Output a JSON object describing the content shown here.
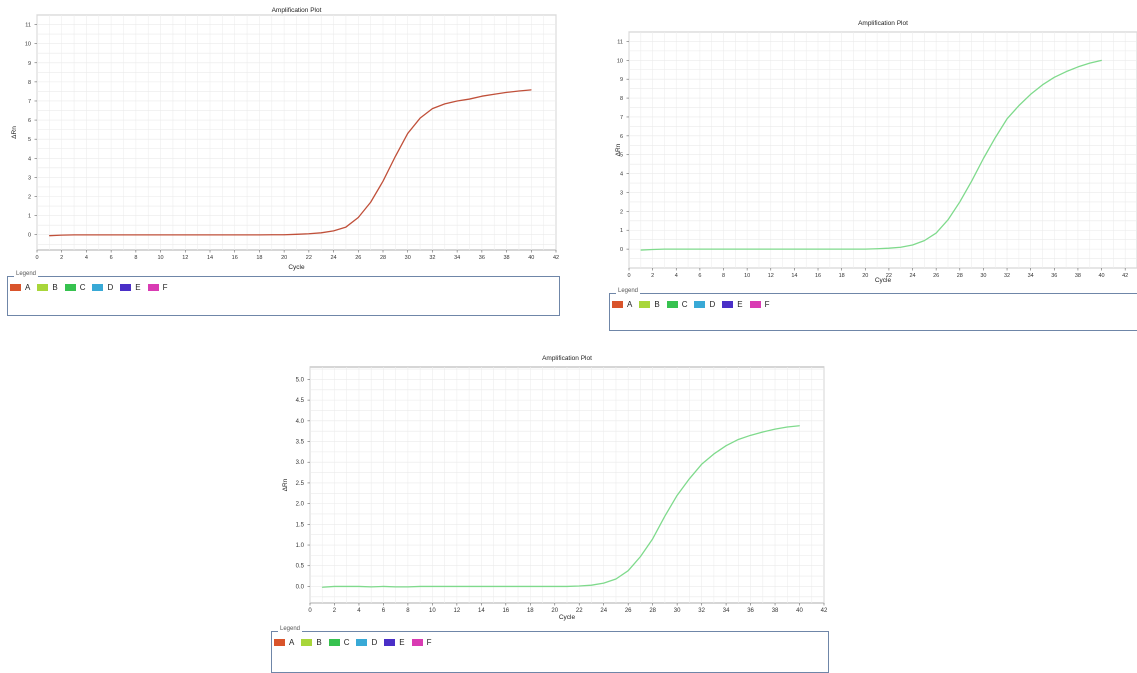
{
  "panels": [
    {
      "title": "Amplification Plot",
      "xlabel": "Cycle",
      "ylabel": "ΔRn",
      "legend_title": "Legend"
    },
    {
      "title": "Amplification Plot",
      "xlabel": "Cycle",
      "ylabel": "ΔRn",
      "legend_title": "Legend"
    },
    {
      "title": "Amplification Plot",
      "xlabel": "Cycle",
      "ylabel": "ΔRn",
      "legend_title": "Legend"
    }
  ],
  "legend": [
    {
      "label": "A",
      "color": "#d9542b"
    },
    {
      "label": "B",
      "color": "#a8d63a"
    },
    {
      "label": "C",
      "color": "#36c24f"
    },
    {
      "label": "D",
      "color": "#38a9d6"
    },
    {
      "label": "E",
      "color": "#4a2fc7"
    },
    {
      "label": "F",
      "color": "#d93bb3"
    }
  ],
  "chart_data": [
    {
      "type": "line",
      "title": "Amplification Plot",
      "xlabel": "Cycle",
      "ylabel": "ΔRn",
      "xlim": [
        0,
        42
      ],
      "ylim": [
        -0.8,
        11.5
      ],
      "xticks": [
        0,
        2,
        4,
        6,
        8,
        10,
        12,
        14,
        16,
        18,
        20,
        22,
        24,
        26,
        28,
        30,
        32,
        34,
        36,
        38,
        40,
        42
      ],
      "yticks": [
        0,
        1,
        2,
        3,
        4,
        5,
        6,
        7,
        8,
        9,
        10,
        11
      ],
      "ytick_labels": [
        "0",
        "1",
        "2",
        "3",
        "4",
        "5",
        "6",
        "7",
        "8",
        "9",
        "10",
        "11"
      ],
      "grid": true,
      "legend_position": "bottom",
      "series": [
        {
          "name": "A",
          "color": "#c0503a",
          "x": [
            1,
            2,
            3,
            4,
            5,
            6,
            7,
            8,
            9,
            10,
            11,
            12,
            13,
            14,
            15,
            16,
            17,
            18,
            19,
            20,
            21,
            22,
            23,
            24,
            25,
            26,
            27,
            28,
            29,
            30,
            31,
            32,
            33,
            34,
            35,
            36,
            37,
            38,
            39,
            40
          ],
          "y": [
            -0.05,
            -0.02,
            -0.01,
            -0.01,
            -0.01,
            -0.01,
            -0.01,
            -0.01,
            -0.01,
            -0.01,
            -0.01,
            -0.01,
            -0.01,
            -0.01,
            -0.01,
            -0.01,
            -0.01,
            -0.01,
            0.0,
            0.0,
            0.02,
            0.05,
            0.1,
            0.2,
            0.4,
            0.9,
            1.7,
            2.8,
            4.1,
            5.3,
            6.1,
            6.6,
            6.85,
            7.0,
            7.1,
            7.25,
            7.35,
            7.45,
            7.52,
            7.58
          ]
        }
      ]
    },
    {
      "type": "line",
      "title": "Amplification Plot",
      "xlabel": "Cycle",
      "ylabel": "ΔRn",
      "xlim": [
        0,
        43
      ],
      "ylim": [
        -1,
        11.5
      ],
      "xticks": [
        0,
        2,
        4,
        6,
        8,
        10,
        12,
        14,
        16,
        18,
        20,
        22,
        24,
        26,
        28,
        30,
        32,
        34,
        36,
        38,
        40,
        42
      ],
      "yticks": [
        0,
        1,
        2,
        3,
        4,
        5,
        6,
        7,
        8,
        9,
        10,
        11
      ],
      "ytick_labels": [
        "0",
        "1",
        "2",
        "3",
        "4",
        "5",
        "6",
        "7",
        "8",
        "9",
        "10",
        "11"
      ],
      "grid": true,
      "legend_position": "bottom",
      "series": [
        {
          "name": "C",
          "color": "#7fda8c",
          "x": [
            1,
            2,
            3,
            4,
            5,
            6,
            7,
            8,
            9,
            10,
            11,
            12,
            13,
            14,
            15,
            16,
            17,
            18,
            19,
            20,
            21,
            22,
            23,
            24,
            25,
            26,
            27,
            28,
            29,
            30,
            31,
            32,
            33,
            34,
            35,
            36,
            37,
            38,
            39,
            40
          ],
          "y": [
            -0.05,
            -0.02,
            0.0,
            0.0,
            0.0,
            0.0,
            0.0,
            0.0,
            0.0,
            0.0,
            0.0,
            0.0,
            0.0,
            0.0,
            0.0,
            0.0,
            0.0,
            0.0,
            0.0,
            0.0,
            0.02,
            0.05,
            0.1,
            0.22,
            0.45,
            0.85,
            1.55,
            2.5,
            3.6,
            4.8,
            5.9,
            6.9,
            7.6,
            8.2,
            8.7,
            9.1,
            9.4,
            9.65,
            9.85,
            10.0
          ]
        }
      ]
    },
    {
      "type": "line",
      "title": "Amplification Plot",
      "xlabel": "Cycle",
      "ylabel": "ΔRn",
      "xlim": [
        0,
        42
      ],
      "ylim": [
        -0.4,
        5.3
      ],
      "xticks": [
        0,
        2,
        4,
        6,
        8,
        10,
        12,
        14,
        16,
        18,
        20,
        22,
        24,
        26,
        28,
        30,
        32,
        34,
        36,
        38,
        40,
        42
      ],
      "yticks": [
        0,
        0.5,
        1,
        1.5,
        2,
        2.5,
        3,
        3.5,
        4,
        4.5,
        5
      ],
      "ytick_labels": [
        "0.0",
        "0.5",
        "1.0",
        "1.5",
        "2.0",
        "2.5",
        "3.0",
        "3.5",
        "4.0",
        "4.5",
        "5.0"
      ],
      "grid": true,
      "legend_position": "bottom",
      "series": [
        {
          "name": "C",
          "color": "#7fda8c",
          "x": [
            1,
            2,
            3,
            4,
            5,
            6,
            7,
            8,
            9,
            10,
            11,
            12,
            13,
            14,
            15,
            16,
            17,
            18,
            19,
            20,
            21,
            22,
            23,
            24,
            25,
            26,
            27,
            28,
            29,
            30,
            31,
            32,
            33,
            34,
            35,
            36,
            37,
            38,
            39,
            40
          ],
          "y": [
            -0.02,
            0.0,
            0.0,
            0.0,
            -0.01,
            0.0,
            -0.01,
            -0.01,
            0.0,
            0.0,
            0.0,
            0.0,
            0.0,
            0.0,
            0.0,
            0.0,
            0.0,
            0.0,
            0.0,
            0.0,
            0.0,
            0.01,
            0.03,
            0.08,
            0.18,
            0.38,
            0.72,
            1.15,
            1.7,
            2.2,
            2.6,
            2.95,
            3.2,
            3.4,
            3.55,
            3.65,
            3.73,
            3.8,
            3.85,
            3.88
          ]
        }
      ]
    }
  ]
}
